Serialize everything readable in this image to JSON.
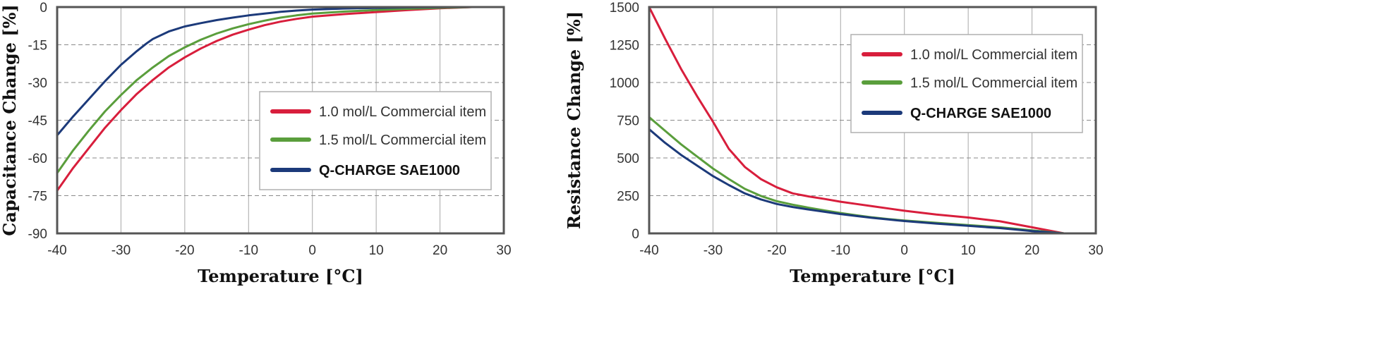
{
  "chart_data": [
    {
      "type": "line",
      "xlabel": "Temperature [°C]",
      "ylabel": "Capacitance Change [%]",
      "xlim": [
        -40,
        30
      ],
      "ylim": [
        -90,
        0
      ],
      "x_ticks": [
        "-40",
        "-30",
        "-20",
        "-10",
        "0",
        "10",
        "20",
        "30"
      ],
      "y_ticks": [
        "0",
        "-15",
        "-30",
        "-45",
        "-60",
        "-75",
        "-90"
      ],
      "grid": "dashed horizontal, solid vertical",
      "legend": "center-right",
      "series": [
        {
          "name": "1.0 mol/L Commercial item",
          "color": "#d81e3c",
          "x": [
            -40,
            -37.5,
            -35,
            -32.5,
            -30,
            -27.5,
            -25,
            -22.5,
            -20,
            -17.5,
            -15,
            -12.5,
            -10,
            -7.5,
            -5,
            -2.5,
            0,
            5,
            10,
            15,
            20,
            25
          ],
          "y": [
            -73,
            -64,
            -56,
            -48,
            -41,
            -34.5,
            -29,
            -24,
            -20,
            -16.5,
            -13.5,
            -11,
            -9,
            -7.2,
            -5.8,
            -4.7,
            -3.8,
            -2.8,
            -2,
            -1.2,
            -0.5,
            0
          ]
        },
        {
          "name": "1.5 mol/L Commercial item",
          "color": "#5a9e3c",
          "x": [
            -40,
            -37.5,
            -35,
            -32.5,
            -30,
            -27.5,
            -25,
            -22.5,
            -20,
            -17.5,
            -15,
            -12.5,
            -10,
            -7.5,
            -5,
            -2.5,
            0,
            5,
            10,
            15,
            20,
            25
          ],
          "y": [
            -66,
            -57,
            -49,
            -41.5,
            -35,
            -29,
            -24,
            -19.5,
            -16,
            -13,
            -10.5,
            -8.5,
            -6.8,
            -5.4,
            -4.2,
            -3.3,
            -2.6,
            -1.8,
            -1.2,
            -0.7,
            -0.3,
            0
          ]
        },
        {
          "name": "Q-CHARGE SAE1000",
          "color": "#1c3a7a",
          "x": [
            -40,
            -37.5,
            -35,
            -32.5,
            -30,
            -27.5,
            -26,
            -25,
            -22.5,
            -20,
            -17.5,
            -15,
            -12.5,
            -10,
            -7.5,
            -5,
            -2.5,
            0,
            5,
            10,
            15,
            20,
            25
          ],
          "y": [
            -51,
            -43.5,
            -36.5,
            -29.5,
            -23,
            -17.5,
            -14.5,
            -12.7,
            -9.7,
            -7.7,
            -6.4,
            -5.2,
            -4.2,
            -3.3,
            -2.6,
            -1.9,
            -1.4,
            -1,
            -0.6,
            -0.35,
            -0.15,
            -0.05,
            0
          ]
        }
      ]
    },
    {
      "type": "line",
      "xlabel": "Temperature [°C]",
      "ylabel": "Resistance Change [%]",
      "xlim": [
        -40,
        30
      ],
      "ylim": [
        0,
        1500
      ],
      "x_ticks": [
        "-40",
        "-30",
        "-20",
        "-10",
        "0",
        "10",
        "20",
        "30"
      ],
      "y_ticks": [
        "1500",
        "1250",
        "1000",
        "750",
        "500",
        "250",
        "0"
      ],
      "grid": "dashed horizontal, solid vertical",
      "legend": "top-right",
      "series": [
        {
          "name": "1.0 mol/L Commercial item",
          "color": "#d81e3c",
          "x": [
            -40,
            -37.5,
            -35,
            -32.5,
            -30,
            -27.5,
            -25,
            -22.5,
            -20,
            -17.5,
            -15,
            -12.5,
            -10,
            -7.5,
            -5,
            -2.5,
            0,
            5,
            10,
            15,
            20,
            25
          ],
          "y": [
            1500,
            1290,
            1090,
            910,
            740,
            560,
            440,
            360,
            305,
            265,
            245,
            228,
            210,
            195,
            180,
            165,
            150,
            125,
            105,
            80,
            40,
            0
          ]
        },
        {
          "name": "1.5 mol/L Commercial item",
          "color": "#5a9e3c",
          "x": [
            -40,
            -37.5,
            -35,
            -32.5,
            -30,
            -27.5,
            -25,
            -22.5,
            -20,
            -17.5,
            -15,
            -12.5,
            -10,
            -7.5,
            -5,
            -2.5,
            0,
            5,
            10,
            15,
            20,
            25
          ],
          "y": [
            770,
            680,
            590,
            510,
            430,
            360,
            295,
            248,
            213,
            190,
            170,
            152,
            135,
            120,
            106,
            95,
            85,
            70,
            55,
            40,
            20,
            0
          ]
        },
        {
          "name": "Q-CHARGE SAE1000",
          "color": "#1c3a7a",
          "x": [
            -40,
            -37.5,
            -35,
            -32.5,
            -30,
            -27.5,
            -25,
            -22.5,
            -20,
            -17.5,
            -15,
            -12.5,
            -10,
            -7.5,
            -5,
            -2.5,
            0,
            5,
            10,
            15,
            20,
            25
          ],
          "y": [
            690,
            600,
            520,
            450,
            380,
            320,
            265,
            225,
            195,
            175,
            158,
            143,
            128,
            115,
            103,
            92,
            82,
            65,
            50,
            35,
            15,
            0
          ]
        }
      ]
    }
  ]
}
